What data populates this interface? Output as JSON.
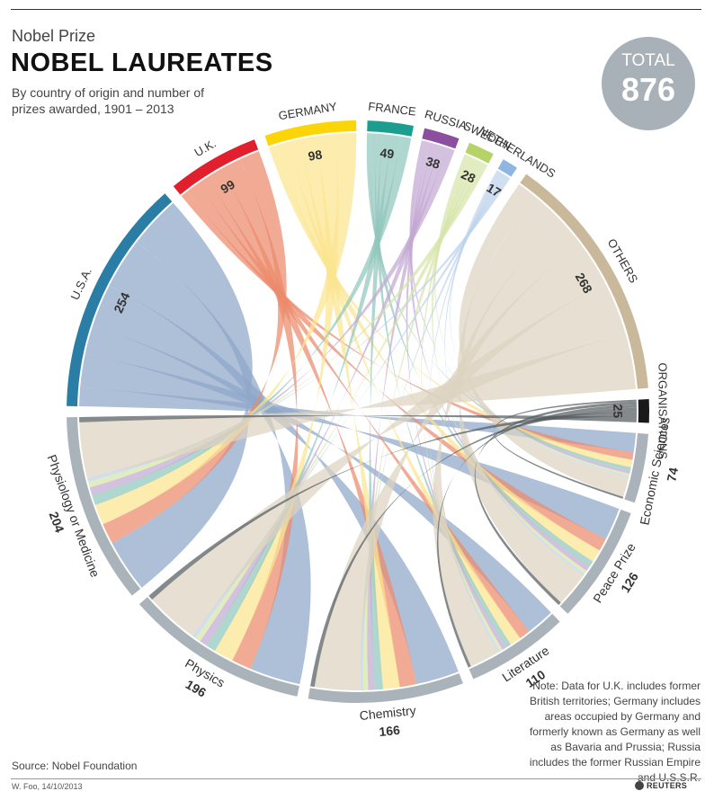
{
  "header": {
    "kicker": "Nobel Prize",
    "title": "NOBEL LAUREATES",
    "subtitle": "By country of origin and number of prizes awarded, 1901 – 2013"
  },
  "total": {
    "label": "TOTAL",
    "value": "876"
  },
  "note": "Note: Data for U.K. includes former British territories; Germany includes areas occupied by Germany and formerly known as Germany as well as Bavaria and Prussia; Russia includes the former Russian Empire and U.S.S.R.",
  "source": "Source: Nobel Foundation",
  "credit": "W. Foo, 14/10/2013",
  "brand": "REUTERS",
  "chart_data": {
    "type": "chord",
    "countries": [
      {
        "name": "U.S.A.",
        "value": 254,
        "color": "#2a7da5",
        "ribbon": "#8fa6c9"
      },
      {
        "name": "U.K.",
        "value": 99,
        "color": "#e21f2c",
        "ribbon": "#ec8a6c"
      },
      {
        "name": "GERMANY",
        "value": 98,
        "color": "#fcd508",
        "ribbon": "#fbe48f"
      },
      {
        "name": "FRANCE",
        "value": 49,
        "color": "#1b9e8f",
        "ribbon": "#90c6bd"
      },
      {
        "name": "RUSSIA",
        "value": 38,
        "color": "#8c4e9e",
        "ribbon": "#c4a8d2"
      },
      {
        "name": "SWEDEN",
        "value": 28,
        "color": "#b6d36a",
        "ribbon": "#d6e5a9"
      },
      {
        "name": "NETHERLANDS",
        "value": 17,
        "color": "#8fb5e2",
        "ribbon": "#bdd2ec"
      },
      {
        "name": "OTHERS",
        "value": 268,
        "color": "#c9b99a",
        "ribbon": "#ddd2c0"
      },
      {
        "name": "ORGANISATIONS",
        "value": 25,
        "color": "#1a1a1a",
        "ribbon": "#555b60"
      }
    ],
    "prizes": [
      {
        "name": "Economic Sciences",
        "value": 74
      },
      {
        "name": "Peace Prize",
        "value": 126
      },
      {
        "name": "Literature",
        "value": 110
      },
      {
        "name": "Chemistry",
        "value": 166
      },
      {
        "name": "Physics",
        "value": 196
      },
      {
        "name": "Physiology or Medicine",
        "value": 204
      }
    ],
    "prize_color": "#a9b3b9"
  }
}
